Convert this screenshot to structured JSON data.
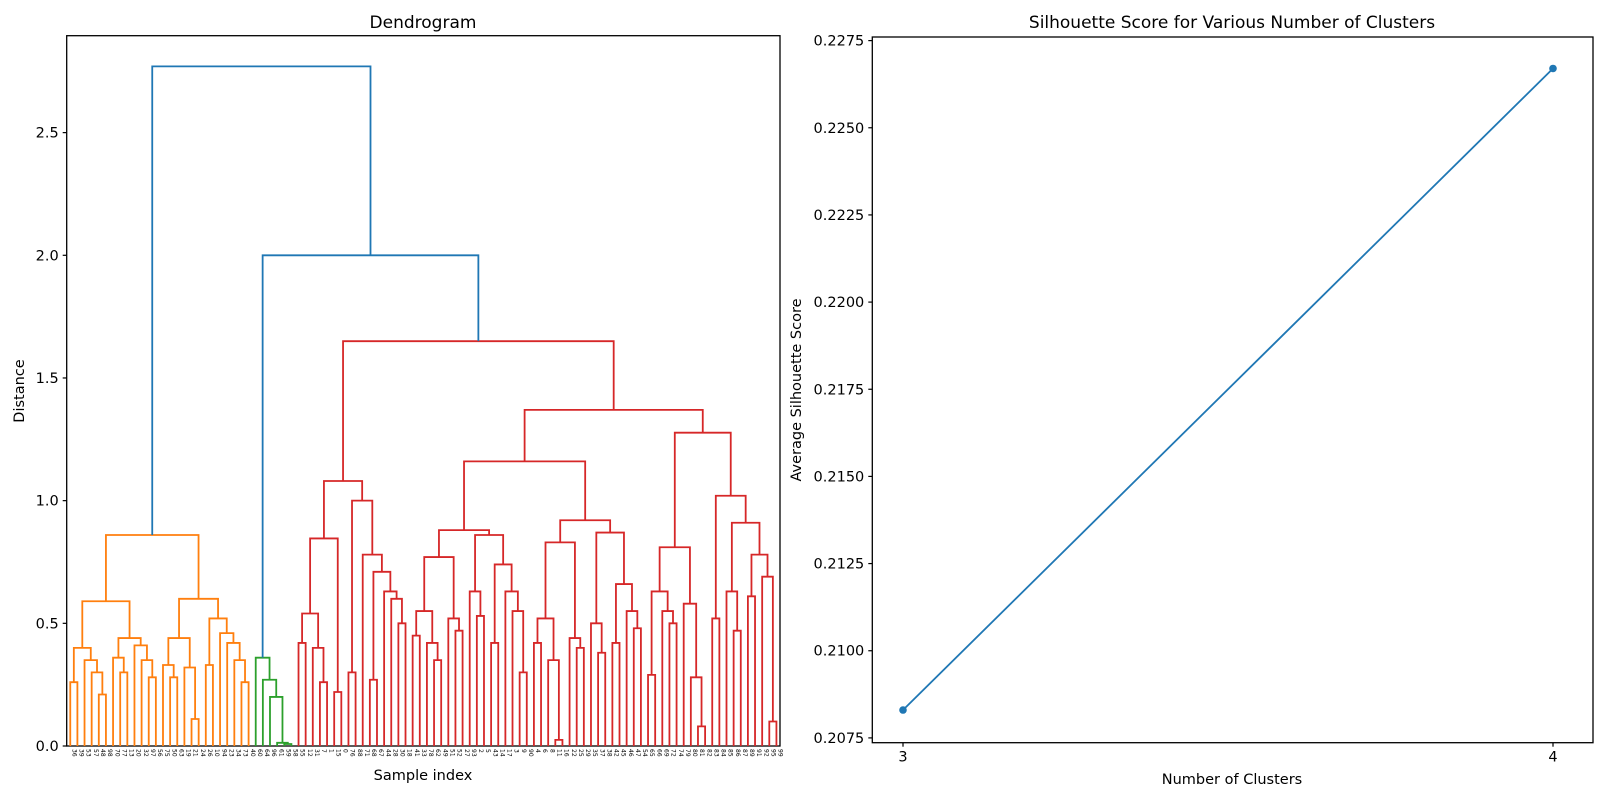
{
  "figure": {
    "background": "#ffffff",
    "axes_edge_color": "#000000"
  },
  "chart_data": [
    {
      "type": "dendrogram",
      "title": "Dendrogram",
      "xlabel": "Sample index",
      "ylabel": "Distance",
      "yticks": [
        "0.0",
        "0.5",
        "1.0",
        "1.5",
        "2.0",
        "2.5"
      ],
      "ylim": [
        0,
        2.895
      ],
      "n_leaves": 100,
      "link_color_above_threshold": "#1f77b4",
      "color_threshold": 1.94,
      "cluster_palette": [
        "#ff7f0e",
        "#2ca02c",
        "#d62728"
      ],
      "tree": [
        2.77,
        [
          0.86,
          [
            0.59,
            [
              0.4,
              [
                0.26,
                "36",
                "39"
              ],
              [
                0.35,
                "53",
                [
                  0.3,
                  "57",
                  [
                    0.21,
                    "48",
                    "98"
                  ]
                ]
              ]
            ],
            [
              0.44,
              [
                0.36,
                "70",
                [
                  0.3,
                  "77",
                  "13"
                ]
              ],
              [
                0.41,
                "20",
                [
                  0.35,
                  "32",
                  [
                    0.28,
                    "97",
                    "56"
                  ]
                ]
              ]
            ]
          ],
          [
            0.6,
            [
              0.44,
              [
                0.33,
                "75",
                [
                  0.28,
                  "50",
                  "63"
                ]
              ],
              [
                0.32,
                "19",
                [
                  0.11,
                  "21",
                  "24"
                ]
              ]
            ],
            [
              0.52,
              [
                0.33,
                "26",
                "10"
              ],
              [
                0.46,
                "94",
                [
                  0.42,
                  "23",
                  [
                    0.35,
                    "34",
                    [
                      0.26,
                      "73",
                      "40"
                    ]
                  ]
                ]
              ]
            ]
          ]
        ],
        [
          2.0,
          [
            0.36,
            "60",
            [
              0.27,
              "64",
              [
                0.2,
                "96",
                [
                  0.013,
                  "61",
                  [
                    0.008,
                    "59",
                    "58"
                  ]
                ]
              ]
            ]
          ],
          [
            1.65,
            [
              1.08,
              [
                0.846,
                [
                  0.54,
                  [
                    0.42,
                    "55",
                    "12"
                  ],
                  [
                    0.4,
                    "31",
                    [
                      0.26,
                      "7",
                      "1"
                    ]
                  ]
                ],
                [
                  0.22,
                  "15",
                  "0"
                ]
              ],
              [
                1.0,
                [
                  0.3,
                  "76",
                  "88"
                ],
                [
                  0.78,
                  "71",
                  [
                    0.71,
                    [
                      0.27,
                      "68",
                      "67"
                    ],
                    [
                      0.63,
                      "44",
                      [
                        0.6,
                        "28",
                        [
                          0.5,
                          "30",
                          "18"
                        ]
                      ]
                    ]
                  ]
                ]
              ]
            ],
            [
              1.37,
              [
                1.16,
                [
                  0.88,
                  [
                    0.77,
                    [
                      0.55,
                      [
                        0.45,
                        "41",
                        "33"
                      ],
                      [
                        0.42,
                        "78",
                        [
                          0.35,
                          "62",
                          "49"
                        ]
                      ]
                    ],
                    [
                      0.52,
                      "51",
                      [
                        0.47,
                        "52",
                        "27"
                      ]
                    ]
                  ],
                  [
                    0.86,
                    [
                      0.63,
                      "93",
                      [
                        0.53,
                        "2",
                        "5"
                      ]
                    ],
                    [
                      0.74,
                      [
                        0.42,
                        "43",
                        "14"
                      ],
                      [
                        0.63,
                        "17",
                        [
                          0.55,
                          "3",
                          [
                            0.3,
                            "9",
                            "90"
                          ]
                        ]
                      ]
                    ]
                  ]
                ],
                [
                  0.92,
                  [
                    0.83,
                    [
                      0.52,
                      [
                        0.42,
                        "4",
                        "6"
                      ],
                      [
                        0.35,
                        "8",
                        [
                          0.025,
                          "11",
                          "16"
                        ]
                      ]
                    ],
                    [
                      0.44,
                      "22",
                      [
                        0.4,
                        "25",
                        "29"
                      ]
                    ]
                  ],
                  [
                    0.87,
                    [
                      0.5,
                      "35",
                      [
                        0.38,
                        "37",
                        "38"
                      ]
                    ],
                    [
                      0.66,
                      [
                        0.42,
                        "42",
                        "45"
                      ],
                      [
                        0.55,
                        "46",
                        [
                          0.48,
                          "47",
                          "54"
                        ]
                      ]
                    ]
                  ]
                ]
              ],
              [
                1.277,
                [
                  0.81,
                  [
                    0.63,
                    [
                      0.29,
                      "65",
                      "66"
                    ],
                    [
                      0.55,
                      "69",
                      [
                        0.5,
                        "72",
                        "74"
                      ]
                    ]
                  ],
                  [
                    0.58,
                    "79",
                    [
                      0.28,
                      "80",
                      [
                        0.08,
                        "81",
                        "82"
                      ]
                    ]
                  ]
                ],
                [
                  1.02,
                  [
                    0.52,
                    "83",
                    "84"
                  ],
                  [
                    0.91,
                    [
                      0.63,
                      "85",
                      [
                        0.47,
                        "86",
                        "87"
                      ]
                    ],
                    [
                      0.78,
                      [
                        0.61,
                        "89",
                        "91"
                      ],
                      [
                        0.69,
                        "92",
                        [
                          0.1,
                          "95",
                          "99"
                        ]
                      ]
                    ]
                  ]
                ]
              ]
            ]
          ]
        ]
      ]
    },
    {
      "type": "line",
      "title": "Silhouette Score for Various Number of Clusters",
      "xlabel": "Number of Clusters",
      "ylabel": "Average Silhouette Score",
      "x": [
        3,
        4
      ],
      "y": [
        0.2083,
        0.2267
      ],
      "xtick_labels": [
        "3",
        "4"
      ],
      "yticks": [
        "0.2075",
        "0.2100",
        "0.2125",
        "0.2150",
        "0.2175",
        "0.2200",
        "0.2225",
        "0.2250",
        "0.2275"
      ],
      "line_color": "#1f77b4",
      "marker": "o"
    }
  ]
}
